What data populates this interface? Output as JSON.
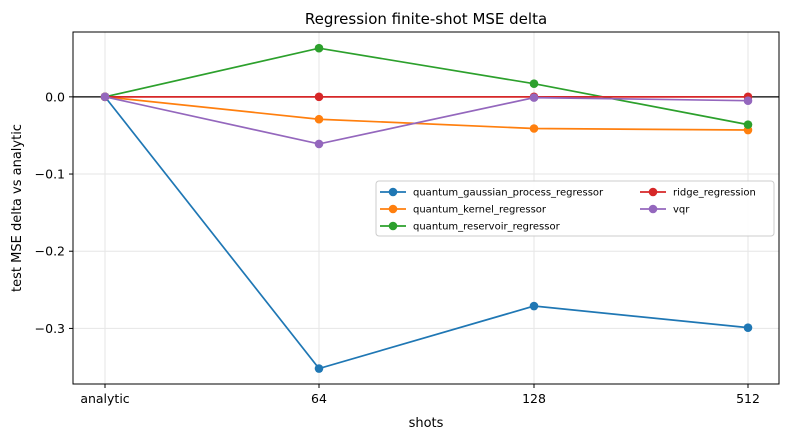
{
  "chart_data": {
    "type": "line",
    "title": "Regression finite-shot MSE delta",
    "xlabel": "shots",
    "ylabel": "test MSE delta vs analytic",
    "categories": [
      "analytic",
      "64",
      "128",
      "512"
    ],
    "ylim": [
      -0.372,
      0.084
    ],
    "yticks": [
      0.0,
      -0.1,
      -0.2,
      -0.3
    ],
    "ytick_labels": [
      "0.0",
      "−0.1",
      "−0.2",
      "−0.3"
    ],
    "grid": true,
    "reference_line": {
      "y": 0,
      "color": "#000000"
    },
    "legend": {
      "placement": "center-right",
      "columns": 2
    },
    "series": [
      {
        "name": "quantum_gaussian_process_regressor",
        "color": "#1f77b4",
        "values": [
          0.0,
          -0.352,
          -0.271,
          -0.299
        ]
      },
      {
        "name": "quantum_kernel_regressor",
        "color": "#ff7f0e",
        "values": [
          0.0,
          -0.029,
          -0.041,
          -0.043
        ]
      },
      {
        "name": "quantum_reservoir_regressor",
        "color": "#2ca02c",
        "values": [
          0.0,
          0.063,
          0.017,
          -0.036
        ]
      },
      {
        "name": "ridge_regression",
        "color": "#d62728",
        "values": [
          0.0,
          0.0,
          0.0,
          0.0
        ]
      },
      {
        "name": "vqr",
        "color": "#9467bd",
        "values": [
          0.0,
          -0.061,
          -0.001,
          -0.005
        ]
      }
    ]
  }
}
